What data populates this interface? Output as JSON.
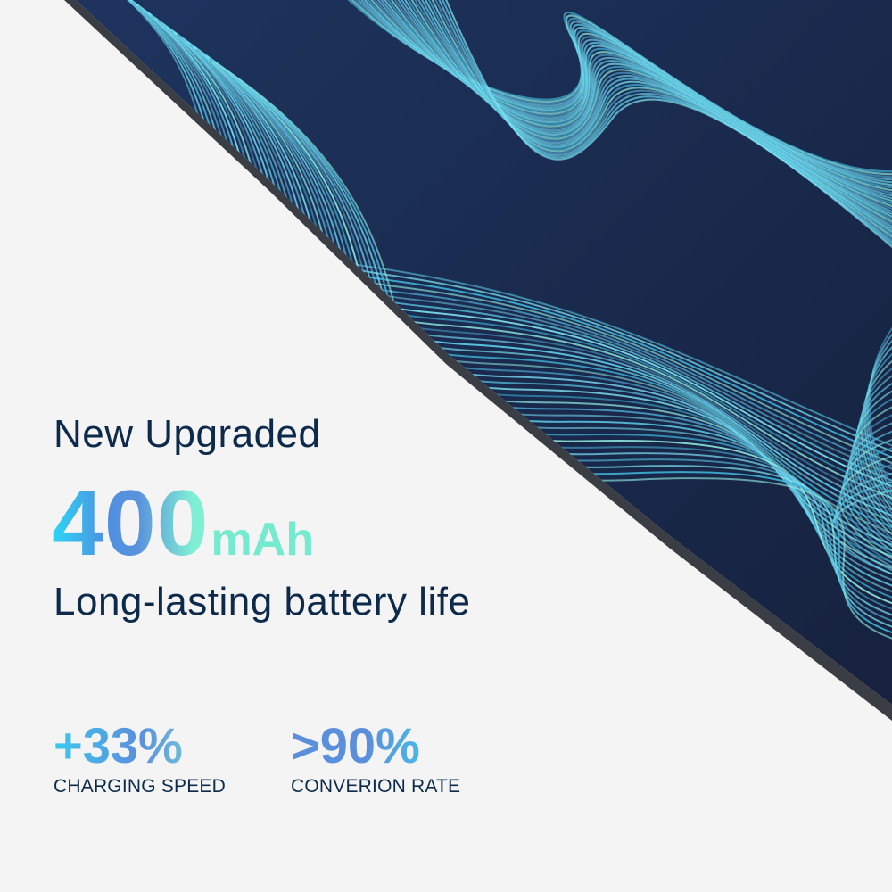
{
  "headline": "New Upgraded",
  "capacity": {
    "value": "400",
    "unit": "mAh"
  },
  "subline": "Long-lasting battery life",
  "stats": [
    {
      "value": "+33%",
      "label": "CHARGING SPEED"
    },
    {
      "value": ">90%",
      "label": "CONVERION RATE"
    }
  ],
  "colors": {
    "background": "#f4f4f4",
    "text": "#0d2a4a",
    "accent_cyan": "#2bd6f5",
    "accent_blue": "#5b8fdc",
    "accent_mint": "#74ebcf",
    "device_navy": "#1b2a4e"
  }
}
